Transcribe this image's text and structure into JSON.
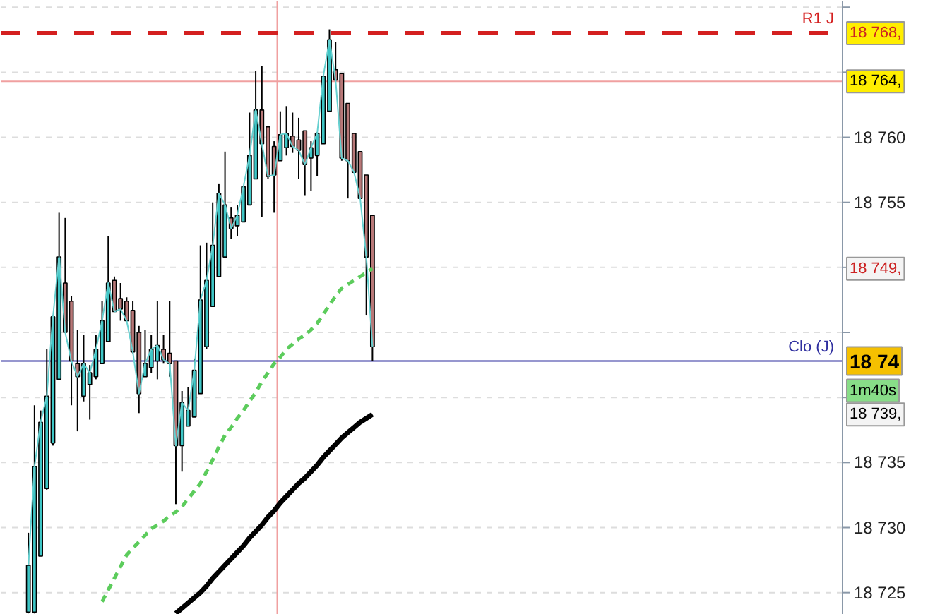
{
  "chart_data": {
    "type": "candlestick",
    "categories": [
      null,
      null,
      null,
      null,
      null,
      null,
      null,
      null,
      null,
      null,
      null,
      null,
      null,
      null,
      null,
      null,
      null,
      null,
      null,
      null,
      null,
      null,
      null,
      null,
      null,
      null,
      null,
      null,
      null,
      null,
      null,
      null,
      null,
      null,
      null,
      null,
      null,
      null,
      null,
      null,
      null,
      null,
      null,
      null,
      null,
      null,
      null,
      null,
      null,
      null,
      null,
      null,
      null,
      null,
      null,
      null,
      null,
      null,
      null,
      null,
      null,
      null,
      null,
      null,
      null,
      null,
      null,
      null,
      null,
      null,
      null,
      null,
      null,
      null,
      null,
      null,
      null,
      null,
      null,
      null,
      null,
      null,
      null,
      null,
      null,
      null,
      null,
      null,
      null,
      null,
      null,
      null,
      null,
      null,
      null,
      null,
      null,
      null,
      null,
      null,
      null,
      null,
      null,
      null,
      null,
      null,
      null,
      null,
      null,
      null,
      null,
      null,
      null,
      null,
      null,
      null,
      null,
      null,
      null,
      null,
      null,
      null,
      null,
      null,
      null,
      null,
      null,
      null,
      null,
      null,
      null,
      null,
      null,
      null,
      null,
      null,
      null
    ],
    "ohlc": [
      null,
      null,
      null,
      null,
      [
        18723.5,
        18729.6,
        18723.4,
        18727.1
      ],
      [
        18723.5,
        18739.4,
        18723.4,
        18734.7
      ],
      [
        18727.8,
        18739.0,
        18727.8,
        18738.1
      ],
      [
        18733.0,
        18743.7,
        18732.9,
        18740.1
      ],
      [
        18736.5,
        18746.3,
        18736.3,
        18746.2
      ],
      [
        18741.4,
        18754.2,
        18741.4,
        18750.8
      ],
      [
        18748.8,
        18753.8,
        18745.0,
        18745.0
      ],
      [
        18747.4,
        18747.8,
        18739.4,
        18742.8
      ],
      [
        18742.6,
        18745.2,
        18737.4,
        18741.6
      ],
      [
        18740.1,
        18744.8,
        18739.7,
        18742.6
      ],
      [
        18741.0,
        18742.5,
        18738.3,
        18741.9
      ],
      [
        18741.6,
        18744.8,
        18741.4,
        18743.7
      ],
      [
        18742.6,
        18747.4,
        18742.6,
        18745.9
      ],
      [
        18744.3,
        18752.4,
        18744.3,
        18748.8
      ],
      [
        18749.0,
        18749.3,
        18746.6,
        18746.6
      ],
      [
        18747.6,
        18748.8,
        18745.9,
        18746.8
      ],
      [
        18747.4,
        18747.7,
        18745.9,
        18745.9
      ],
      [
        18746.7,
        18747.4,
        18743.4,
        18743.5
      ],
      [
        18745.0,
        18745.5,
        18738.8,
        18740.3
      ],
      [
        18741.6,
        18745.2,
        18741.6,
        18742.6
      ],
      [
        18742.3,
        18744.8,
        18741.9,
        18743.7
      ],
      [
        18742.8,
        18747.4,
        18741.4,
        18744.0
      ],
      [
        18743.7,
        18744.8,
        18742.6,
        18742.9
      ],
      [
        18743.4,
        18747.4,
        18741.6,
        18742.6
      ],
      [
        18742.8,
        18742.8,
        18731.8,
        18736.3
      ],
      [
        18736.3,
        18740.5,
        18734.3,
        18739.6
      ],
      [
        18737.8,
        18740.8,
        18737.8,
        18739.0
      ],
      [
        18738.5,
        18743.0,
        18738.5,
        18742.1
      ],
      [
        18740.3,
        18751.7,
        18740.3,
        18747.5
      ],
      [
        18743.9,
        18751.9,
        18743.7,
        18749.0
      ],
      [
        18747.0,
        18755.0,
        18747.0,
        18751.7
      ],
      [
        18749.3,
        18756.4,
        18749.3,
        18755.7
      ],
      [
        18750.8,
        18758.9,
        18750.8,
        18754.8
      ],
      [
        18753.8,
        18754.6,
        18752.2,
        18753.0
      ],
      [
        18753.2,
        18754.8,
        18752.4,
        18754.0
      ],
      [
        18753.5,
        18756.2,
        18753.5,
        18756.2
      ],
      [
        18754.8,
        18761.9,
        18754.8,
        18758.6
      ],
      [
        18756.8,
        18765.1,
        18756.8,
        18762.1
      ],
      [
        18762.1,
        18765.5,
        18753.9,
        18759.5
      ],
      [
        18760.8,
        18760.8,
        18756.8,
        18757.0
      ],
      [
        18759.3,
        18759.7,
        18754.2,
        18757.1
      ],
      [
        18758.2,
        18762.0,
        18758.2,
        18760.2
      ],
      [
        18759.2,
        18762.4,
        18758.6,
        18760.3
      ],
      [
        18760.1,
        18761.9,
        18758.8,
        18759.3
      ],
      [
        18759.8,
        18761.5,
        18756.8,
        18759.0
      ],
      [
        18760.5,
        18760.5,
        18755.5,
        18757.9
      ],
      [
        18758.4,
        18759.7,
        18755.9,
        18759.2
      ],
      [
        18758.6,
        18760.4,
        18757.0,
        18760.3
      ],
      [
        18759.5,
        18764.7,
        18759.5,
        18764.7
      ],
      [
        18762.0,
        18768.3,
        18762.0,
        18767.5
      ],
      [
        18765.2,
        18767.3,
        18764.3,
        18764.4
      ],
      [
        18764.9,
        18764.9,
        18758.2,
        18758.4
      ],
      [
        18762.6,
        18762.6,
        18755.3,
        18758.2
      ],
      [
        18760.3,
        18760.3,
        18757.3,
        18757.3
      ],
      [
        18758.9,
        18758.9,
        18755.3,
        18755.3
      ],
      [
        18757.1,
        18757.1,
        18746.3,
        18750.8
      ],
      [
        18754.0,
        18754.0,
        18742.8,
        18743.9
      ],
      null,
      null,
      null,
      null,
      null,
      null,
      null,
      null,
      null,
      null,
      null,
      null,
      null,
      null,
      null,
      null,
      null,
      null,
      null,
      null,
      null,
      null,
      null,
      null,
      null,
      null,
      null,
      null,
      null,
      null,
      null,
      null,
      null,
      null,
      null,
      null,
      null,
      null,
      null,
      null,
      null,
      null,
      null,
      null,
      null,
      null,
      null,
      null,
      null,
      null,
      null,
      null,
      null,
      null,
      null,
      null,
      null,
      null,
      null,
      null,
      null,
      null,
      null,
      null,
      null,
      null,
      null,
      null,
      null,
      null,
      null,
      null,
      null,
      null,
      null,
      null
    ],
    "colors": [
      null,
      null,
      null,
      null,
      "#3ec6c6",
      "#3ec6c6",
      "#3ec6c6",
      "#3ec6c6",
      "#3ec6c6",
      "#3ec6c6",
      "#b87878",
      "#b87878",
      "#b87878",
      "#3ec6c6",
      "#3ec6c6",
      "#3ec6c6",
      "#3ec6c6",
      "#3ec6c6",
      "#b87878",
      "#b87878",
      "#b87878",
      "#b87878",
      "#b87878",
      "#3ec6c6",
      "#3ec6c6",
      "#3ec6c6",
      "#b87878",
      "#b87878",
      "#b87878",
      "#3ec6c6",
      "#3ec6c6",
      "#3ec6c6",
      "#3ec6c6",
      "#3ec6c6",
      "#3ec6c6",
      "#3ec6c6",
      "#3ec6c6",
      "#b87878",
      "#3ec6c6",
      "#3ec6c6",
      "#3ec6c6",
      "#3ec6c6",
      "#b87878",
      "#b87878",
      "#b87878",
      "#3ec6c6",
      "#3ec6c6",
      "#b87878",
      "#b87878",
      "#b87878",
      "#3ec6c6",
      "#3ec6c6",
      "#3ec6c6",
      "#3ec6c6",
      "#b87878",
      "#b87878",
      "#b87878",
      "#b87878",
      "#b87878",
      "#b87878",
      "#b87878",
      null,
      null,
      null,
      null,
      null,
      null,
      null,
      null,
      null,
      null,
      null,
      null,
      null,
      null,
      null,
      null,
      null,
      null,
      null,
      null,
      null,
      null,
      null,
      null,
      null,
      null,
      null,
      null,
      null,
      null,
      null,
      null,
      null,
      null,
      null,
      null,
      null,
      null,
      null,
      null,
      null,
      null,
      null,
      null,
      null,
      null,
      null,
      null,
      null,
      null,
      null,
      null,
      null,
      null,
      null,
      null,
      null,
      null,
      null,
      null,
      null,
      null,
      null,
      null,
      null,
      null,
      null,
      null,
      null,
      null,
      null,
      null,
      null,
      null,
      null,
      null
    ],
    "series": [
      {
        "type": "line",
        "color": "#66d0d0",
        "line_style": "solid",
        "values": [
          null,
          null,
          null,
          null,
          18727.1,
          18734.7,
          18738.1,
          18740.1,
          18746.2,
          18750.8,
          18745.0,
          18742.8,
          18741.6,
          18742.6,
          18741.9,
          18743.7,
          18745.9,
          18748.8,
          18746.6,
          18746.8,
          18745.9,
          18743.5,
          18740.3,
          18742.6,
          18743.7,
          18744.0,
          18742.9,
          18742.6,
          18736.3,
          18739.6,
          18739.0,
          18742.1,
          18747.5,
          18749.0,
          18751.7,
          18755.7,
          18754.8,
          18753.0,
          18754.0,
          18756.2,
          18758.6,
          18762.1,
          18759.5,
          18757.0,
          18757.1,
          18760.2,
          18760.3,
          18759.3,
          18759.0,
          18757.9,
          18759.2,
          18760.3,
          18764.7,
          18767.5,
          18764.4,
          18758.4,
          18758.2,
          18757.3,
          18755.3,
          18750.8,
          18743.9,
          null,
          null,
          null,
          null,
          null,
          null,
          null,
          null,
          null,
          null,
          null,
          null,
          null,
          null,
          null,
          null,
          null,
          null,
          null,
          null,
          null,
          null,
          null,
          null,
          null,
          null,
          null,
          null,
          null,
          null,
          null,
          null,
          null,
          null,
          null,
          null,
          null,
          null,
          null,
          null,
          null,
          null,
          null,
          null,
          null,
          null,
          null,
          null,
          null,
          null,
          null,
          null,
          null,
          null,
          null,
          null,
          null,
          null,
          null,
          null,
          null,
          null,
          null,
          null,
          null,
          null,
          null,
          null,
          null,
          null,
          null,
          null,
          null,
          null,
          null,
          null
        ]
      },
      {
        "type": "line",
        "color": "#5ccc5c",
        "line_style": "dashed",
        "values": [
          null,
          null,
          null,
          null,
          null,
          null,
          null,
          null,
          null,
          null,
          null,
          null,
          null,
          null,
          null,
          null,
          18724.3,
          18725.2,
          18726.1,
          18727.0,
          18727.9,
          18728.4,
          18728.9,
          18729.4,
          18729.9,
          18730.2,
          18730.5,
          18730.9,
          18731.2,
          18731.6,
          18732.2,
          18732.8,
          18733.4,
          18734.3,
          18735.2,
          18736.2,
          18737.1,
          18737.7,
          18738.4,
          18739.0,
          18739.7,
          18740.4,
          18741.2,
          18741.9,
          18742.6,
          18743.1,
          18743.7,
          18744.1,
          18744.5,
          18744.8,
          18745.2,
          18745.7,
          18746.4,
          18747.1,
          18747.8,
          18748.4,
          18748.7,
          18749.0,
          18749.3,
          18749.6,
          18749.9,
          null,
          null,
          null,
          null,
          null,
          null,
          null,
          null,
          null,
          null,
          null,
          null,
          null,
          null,
          null,
          null,
          null,
          null,
          null,
          null,
          null,
          null,
          null,
          null,
          null,
          null,
          null,
          null,
          null,
          null,
          null,
          null,
          null,
          null,
          null,
          null,
          null,
          null,
          null,
          null,
          null,
          null,
          null,
          null,
          null,
          null,
          null,
          null,
          null,
          null,
          null,
          null,
          null,
          null,
          null,
          null,
          null,
          null,
          null,
          null,
          null,
          null,
          null,
          null,
          null,
          null,
          null,
          null,
          null,
          null,
          null,
          null,
          null,
          null,
          null,
          null
        ]
      },
      {
        "type": "line",
        "color": "#000000",
        "line_style": "solid",
        "values": [
          null,
          null,
          null,
          null,
          null,
          null,
          null,
          null,
          null,
          null,
          null,
          null,
          null,
          null,
          null,
          null,
          null,
          null,
          null,
          null,
          null,
          null,
          null,
          null,
          null,
          null,
          null,
          null,
          18723.4,
          18723.8,
          18724.2,
          18724.6,
          18725.0,
          18725.5,
          18726.1,
          18726.6,
          18727.1,
          18727.6,
          18728.1,
          18728.6,
          18729.2,
          18729.7,
          18730.2,
          18730.8,
          18731.3,
          18731.9,
          18732.4,
          18732.9,
          18733.4,
          18733.8,
          18734.3,
          18734.8,
          18735.4,
          18735.9,
          18736.4,
          18736.9,
          18737.3,
          18737.7,
          18738.1,
          18738.4,
          18738.7,
          null,
          null,
          null,
          null,
          null,
          null,
          null,
          null,
          null,
          null,
          null,
          null,
          null,
          null,
          null,
          null,
          null,
          null,
          null,
          null,
          null,
          null,
          null,
          null,
          null,
          null,
          null,
          null,
          null,
          null,
          null,
          null,
          null,
          null,
          null,
          null,
          null,
          null,
          null,
          null,
          null,
          null,
          null,
          null,
          null,
          null,
          null,
          null,
          null,
          null,
          null,
          null,
          null,
          null,
          null,
          null,
          null,
          null,
          null,
          null,
          null,
          null,
          null,
          null,
          null,
          null,
          null,
          null,
          null,
          null,
          null,
          null,
          null,
          null,
          null,
          null
        ]
      }
    ],
    "ylim": [
      18723.3,
      18770.5
    ],
    "yticks": [
      {
        "value": 18725,
        "label": "18 725"
      },
      {
        "value": 18730,
        "label": "18 730"
      },
      {
        "value": 18735,
        "label": "18 735"
      },
      {
        "value": 18740,
        "label": null
      },
      {
        "value": 18745,
        "label": null
      },
      {
        "value": 18750,
        "label": null
      },
      {
        "value": 18755,
        "label": "18 755"
      },
      {
        "value": 18760,
        "label": "18 760"
      },
      {
        "value": 18765,
        "label": null
      },
      {
        "value": 18770,
        "label": null
      }
    ],
    "tick_labels": "y",
    "grid": "y",
    "ref_lines": [
      {
        "axis": "y",
        "value": 18768,
        "label": "R1 J",
        "color": "#d42020",
        "line_style": "dashed"
      },
      {
        "axis": "y",
        "value": 18764.3,
        "label": null,
        "color": "#f0a0a0",
        "line_style": "solid"
      },
      {
        "axis": "y",
        "value": 18742.8,
        "label": "Clo (J)",
        "color": "#3030a0",
        "line_style": "solid"
      }
    ],
    "annotations": [
      {
        "text": "18 768,",
        "y": 18768
      },
      {
        "text": "18 764,",
        "y": 18764.3
      },
      {
        "text": "18 749,",
        "y": 18749.9
      },
      {
        "text": "18 74",
        "y": 18742.8
      },
      "1m40s",
      {
        "text": "18 739,",
        "y": 18738.7
      }
    ]
  }
}
